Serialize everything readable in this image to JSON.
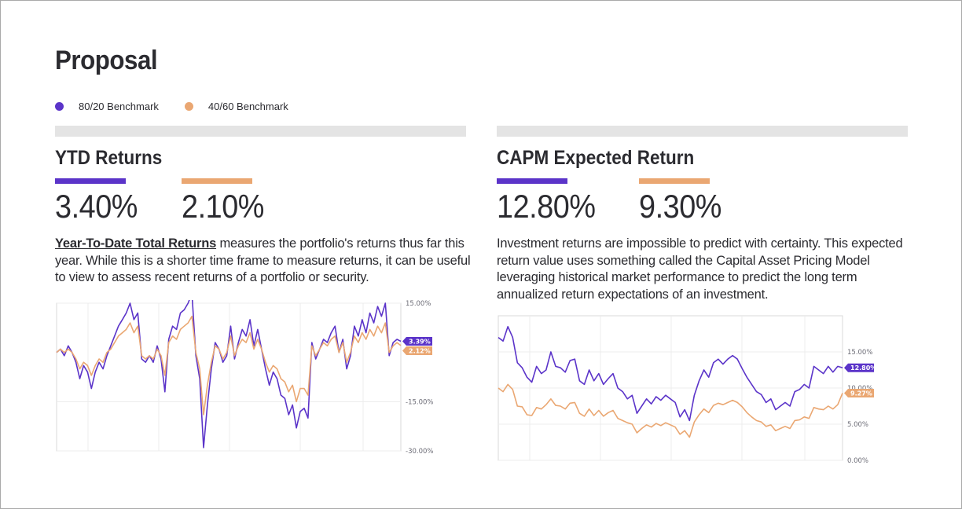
{
  "page": {
    "title": "Proposal"
  },
  "legend": [
    {
      "label": "80/20 Benchmark",
      "color": "#5b34c9"
    },
    {
      "label": "40/60 Benchmark",
      "color": "#eaa772"
    }
  ],
  "ytd": {
    "title": "YTD Returns",
    "value_a": "3.40%",
    "value_b": "2.10%",
    "desc_term": "Year-To-Date Total Returns",
    "desc_rest": " measures the portfolio's returns thus far this year. While this is a shorter time frame to measure returns, it can be useful to view to assess recent returns of a portfolio or security."
  },
  "capm": {
    "title": "CAPM Expected Return",
    "value_a": "12.80%",
    "value_b": "9.30%",
    "desc": "Investment returns are impossible to predict with certainty.  This expected return value uses something called the Capital Asset Pricing Model leveraging historical market performance to predict the long term annualized return expectations of an investment."
  },
  "chart_data": [
    {
      "type": "line",
      "ylim": [
        -30,
        15
      ],
      "yticks": [
        15,
        -15,
        -30
      ],
      "ytick_labels": [
        "15.00%",
        "-15.00%",
        "-30.00%"
      ],
      "grid": true,
      "series": [
        {
          "color": "#5b34c9",
          "end_label": "3.39%",
          "values": [
            0,
            1,
            -1,
            2,
            0,
            -3,
            -8,
            -4,
            -6,
            -11,
            -6,
            -3,
            -5,
            -1,
            2,
            5,
            8,
            10,
            12,
            15,
            10,
            12,
            -2,
            -3,
            -1,
            -3,
            2,
            -2,
            -12,
            4,
            8,
            7,
            12,
            13,
            15,
            18,
            -1,
            -8,
            -29,
            -16,
            -5,
            3,
            1,
            -3,
            -1,
            8,
            -2,
            3,
            7,
            5,
            10,
            2,
            7,
            1,
            -5,
            -10,
            -6,
            -8,
            -13,
            -14,
            -19,
            -16,
            -23,
            -18,
            -17,
            -20,
            3,
            -2,
            1,
            4,
            3,
            6,
            8,
            0,
            4,
            -5,
            -1,
            8,
            5,
            10,
            6,
            12,
            9,
            14,
            11,
            15,
            -1,
            3,
            4,
            3.4
          ]
        },
        {
          "color": "#eaa772",
          "end_label": "2.12%",
          "values": [
            0,
            1,
            0,
            1,
            0,
            -2,
            -5,
            -3,
            -4,
            -7,
            -4,
            -2,
            -3,
            0,
            1,
            3,
            5,
            6,
            7,
            9,
            6,
            8,
            -1,
            -2,
            -1,
            -2,
            1,
            -1,
            -7,
            3,
            5,
            4,
            7,
            8,
            9,
            11,
            0,
            -5,
            -19,
            -10,
            -3,
            2,
            1,
            -2,
            0,
            5,
            -1,
            2,
            4,
            3,
            6,
            1,
            4,
            1,
            -3,
            -6,
            -4,
            -5,
            -8,
            -9,
            -12,
            -10,
            -15,
            -11,
            -11,
            -13,
            2,
            -1,
            1,
            3,
            2,
            4,
            5,
            0,
            3,
            -3,
            0,
            5,
            3,
            6,
            4,
            7,
            5,
            8,
            6,
            9,
            0,
            2,
            3,
            2.1
          ]
        }
      ]
    },
    {
      "type": "line",
      "ylim": [
        0,
        20
      ],
      "yticks": [
        15,
        10,
        5,
        0
      ],
      "ytick_labels": [
        "15.00%",
        "10.00%",
        "5.00%",
        "0.00%"
      ],
      "grid": true,
      "series": [
        {
          "color": "#5b34c9",
          "end_label": "12.80%",
          "values": [
            17,
            16.5,
            18.5,
            17,
            13.5,
            12.8,
            11.5,
            10.8,
            13,
            12,
            12.5,
            15,
            13,
            12.8,
            12.2,
            13.8,
            14,
            11,
            10.5,
            12.5,
            11,
            12,
            10.5,
            11.3,
            12,
            10,
            9.5,
            8.5,
            9,
            6.5,
            7.5,
            8.5,
            7.8,
            8.8,
            8.3,
            9,
            8.5,
            8,
            6,
            7,
            5.5,
            9,
            11,
            12.5,
            11.5,
            13.5,
            14,
            13.3,
            14,
            14.5,
            14,
            12.7,
            11.5,
            10.5,
            9.5,
            9.1,
            8,
            8.5,
            7,
            7.5,
            8,
            7.5,
            9.5,
            9.8,
            10.5,
            10,
            13,
            12.5,
            12,
            13,
            12.2,
            13,
            12.8
          ]
        },
        {
          "color": "#eaa772",
          "end_label": "9.27%",
          "values": [
            10,
            9.5,
            10.5,
            9.8,
            7.5,
            7.4,
            6.3,
            6.2,
            7.3,
            7.1,
            7.7,
            8.5,
            7.6,
            7.5,
            7.1,
            7.9,
            8,
            6.5,
            6.1,
            7.1,
            6.2,
            6.9,
            6.1,
            6.6,
            6.9,
            5.8,
            5.5,
            5.2,
            5,
            3.8,
            4.4,
            4.9,
            4.6,
            5.1,
            4.8,
            5.2,
            4.9,
            4.6,
            3.6,
            4.1,
            3.2,
            5.3,
            6.3,
            7.1,
            6.6,
            7.6,
            7.9,
            7.7,
            8,
            8.3,
            8,
            7.4,
            6.6,
            6,
            5.5,
            5.3,
            4.7,
            4.9,
            4.1,
            4.4,
            4.7,
            4.4,
            5.5,
            5.6,
            6,
            5.8,
            7.3,
            7.1,
            7,
            7.5,
            7.1,
            7.7,
            9.3
          ]
        }
      ]
    }
  ]
}
